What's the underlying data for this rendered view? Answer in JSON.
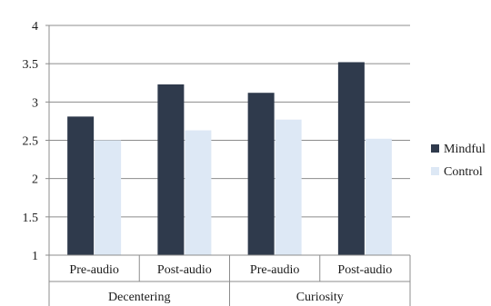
{
  "chart_data": {
    "type": "bar",
    "title": "",
    "xlabel": "",
    "ylabel": "",
    "ylim": [
      1,
      4
    ],
    "yticks": [
      "1",
      "1.5",
      "2",
      "2.5",
      "3",
      "3.5",
      "4"
    ],
    "grid": "horizontal",
    "legend_position": "right",
    "groups": [
      {
        "label": "Decentering",
        "categories": [
          "Pre-audio",
          "Post-audio"
        ]
      },
      {
        "label": "Curiosity",
        "categories": [
          "Pre-audio",
          "Post-audio"
        ]
      }
    ],
    "categories": [
      "Pre-audio",
      "Post-audio",
      "Pre-audio",
      "Post-audio"
    ],
    "series": [
      {
        "name": "Mindful",
        "color": "#2f3a4c",
        "values": [
          2.81,
          3.23,
          3.12,
          3.52
        ]
      },
      {
        "name": "Control",
        "color": "#dde8f5",
        "values": [
          2.5,
          2.63,
          2.77,
          2.52
        ]
      }
    ]
  }
}
